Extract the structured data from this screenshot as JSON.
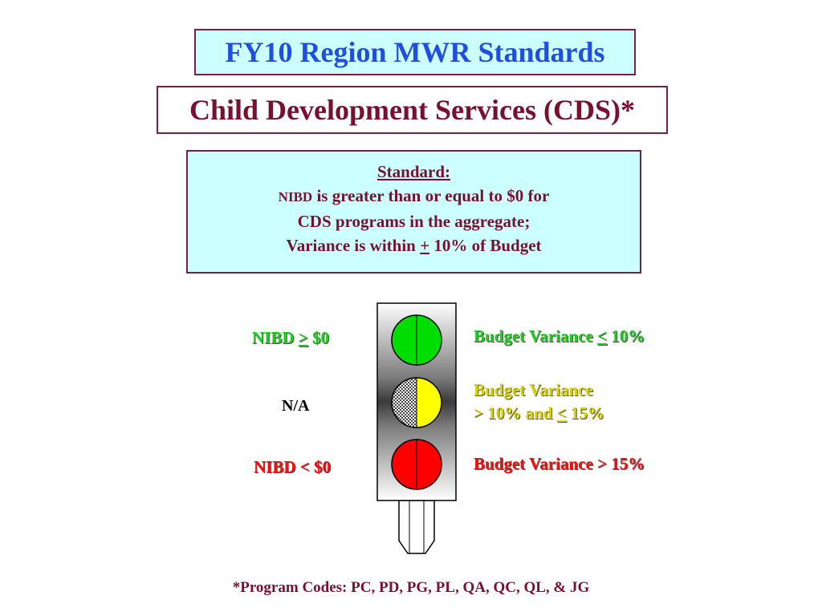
{
  "title": "FY10 Region MWR Standards",
  "subtitle": "Child Development Services (CDS)*",
  "standard": {
    "heading": "Standard:",
    "nibd": "NIBD",
    "line1_rest": " is greater than or equal to $0 for",
    "line2": "CDS programs in the aggregate;",
    "line3_pre": "Variance is within ",
    "line3_pm": "+",
    "line3_post": " 10% of Budget"
  },
  "left_labels": {
    "green_pre": "NIBD ",
    "green_op": ">",
    "green_post": " $0",
    "yellow": "N/A",
    "red": "NIBD < $0"
  },
  "right_labels": {
    "green_pre": "Budget Variance ",
    "green_op": "<",
    "green_post": " 10%",
    "yellow_line1": "Budget Variance",
    "yellow_line2_pre": "> 10% and ",
    "yellow_line2_op": "<",
    "yellow_line2_post": " 15%",
    "red": "Budget Variance > 15%"
  },
  "colors": {
    "light_green": "#00dd00",
    "light_yellow": "#ffff00",
    "light_red": "#ff0000",
    "title_blue": "#1f4fe0",
    "maroon": "#7a1030",
    "panel_cyan": "#ccffff"
  },
  "footer": "*Program Codes: PC, PD, PG, PL, QA, QC, QL, & JG"
}
